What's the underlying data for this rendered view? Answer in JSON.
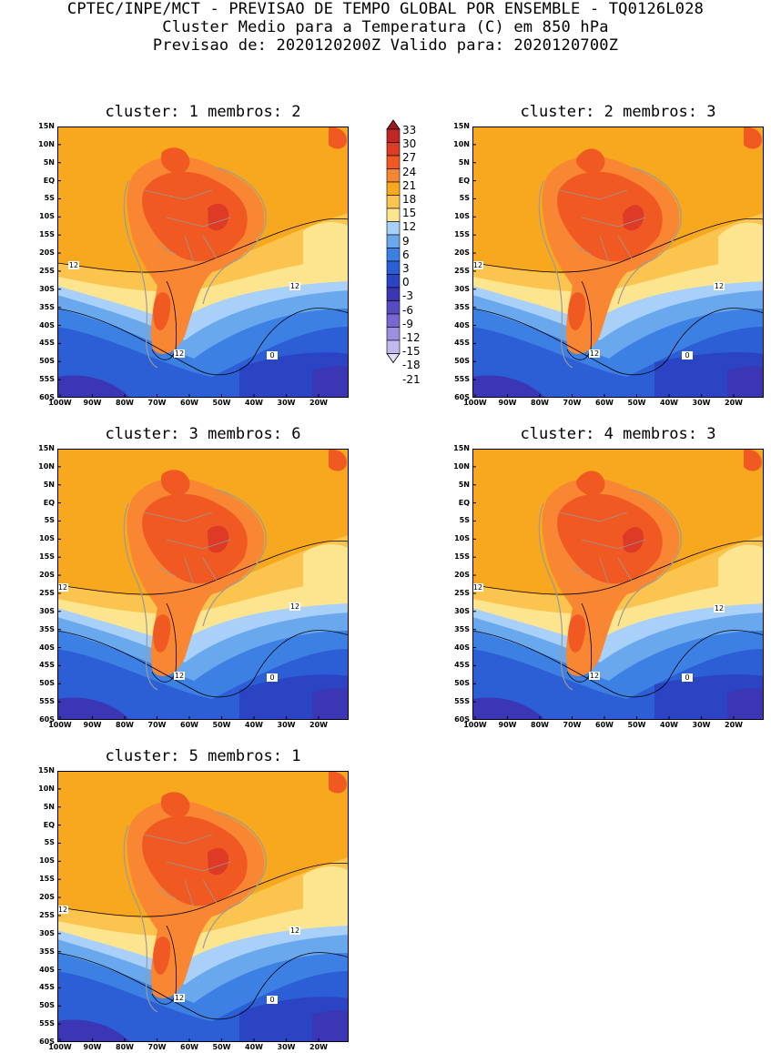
{
  "header": {
    "line1": "CPTEC/INPE/MCT - PREVISAO DE TEMPO GLOBAL POR ENSEMBLE - TQ0126L028",
    "line2": "Cluster Medio para a Temperatura (C) em 850 hPa",
    "line3": "Previsao de: 2020120200Z   Valido para: 2020120700Z"
  },
  "panels": [
    {
      "cluster": "1",
      "membros": "2",
      "title": "cluster: 1  membros: 2"
    },
    {
      "cluster": "2",
      "membros": "3",
      "title": "cluster: 2  membros: 3"
    },
    {
      "cluster": "3",
      "membros": "6",
      "title": "cluster: 3  membros: 6"
    },
    {
      "cluster": "4",
      "membros": "3",
      "title": "cluster: 4  membros: 3"
    },
    {
      "cluster": "5",
      "membros": "1",
      "title": "cluster: 5  membros: 1"
    }
  ],
  "lat_labels": [
    "15N",
    "10N",
    "5N",
    "EQ",
    "5S",
    "10S",
    "15S",
    "20S",
    "25S",
    "30S",
    "35S",
    "40S",
    "45S",
    "50S",
    "55S",
    "60S"
  ],
  "lon_labels": [
    "100W",
    "90W",
    "80W",
    "70W",
    "60W",
    "50W",
    "40W",
    "30W",
    "20W"
  ],
  "contour_labels": {
    "warm": "12",
    "cold": "0"
  },
  "colorbar": {
    "levels": [
      "33",
      "30",
      "27",
      "24",
      "21",
      "18",
      "15",
      "12",
      "9",
      "6",
      "3",
      "0",
      "-3",
      "-6",
      "-9",
      "-12",
      "-15",
      "-18",
      "-21"
    ],
    "colors": [
      "#a01818",
      "#c02828",
      "#de3a26",
      "#f05a22",
      "#f88632",
      "#f8a81e",
      "#fbc44e",
      "#fde590",
      "#a8d0f8",
      "#6aa8ee",
      "#3d80e4",
      "#2c5fd6",
      "#2a44c4",
      "#3a36b4",
      "#5a4ac2",
      "#7a66d2",
      "#9c8ee0",
      "#c2b8ee",
      "#e4defa"
    ]
  }
}
